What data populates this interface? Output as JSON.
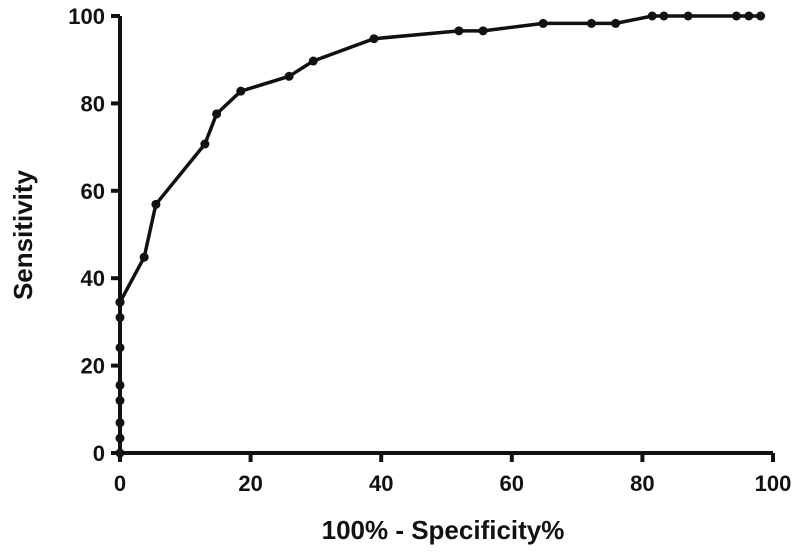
{
  "chart_data": {
    "type": "line",
    "title": "",
    "xlabel": "100%  - Specificity%",
    "ylabel": "Sensitivity",
    "xlim": [
      0,
      100
    ],
    "ylim": [
      0,
      100
    ],
    "xticks": [
      "0",
      "20",
      "40",
      "60",
      "80",
      "100"
    ],
    "yticks": [
      "0",
      "20",
      "40",
      "60",
      "80",
      "100"
    ],
    "grid": false,
    "series": [
      {
        "name": "",
        "color": "#111111",
        "x": [
          0,
          0,
          0,
          0,
          0,
          0,
          0,
          0,
          0,
          3.7,
          5.5,
          13,
          14.8,
          18.5,
          25.9,
          29.6,
          38.9,
          51.9,
          55.6,
          64.8,
          72.2,
          75.9,
          81.5,
          83.3,
          87,
          94.4,
          96.3,
          98.1
        ],
        "y": [
          0,
          3.4,
          6.9,
          12,
          15.5,
          24.1,
          31,
          34.5,
          34.5,
          44.8,
          56.9,
          70.7,
          77.6,
          82.8,
          86.2,
          89.7,
          94.8,
          96.6,
          96.6,
          98.3,
          98.3,
          98.3,
          100,
          100,
          100,
          100,
          100,
          100
        ]
      }
    ]
  }
}
